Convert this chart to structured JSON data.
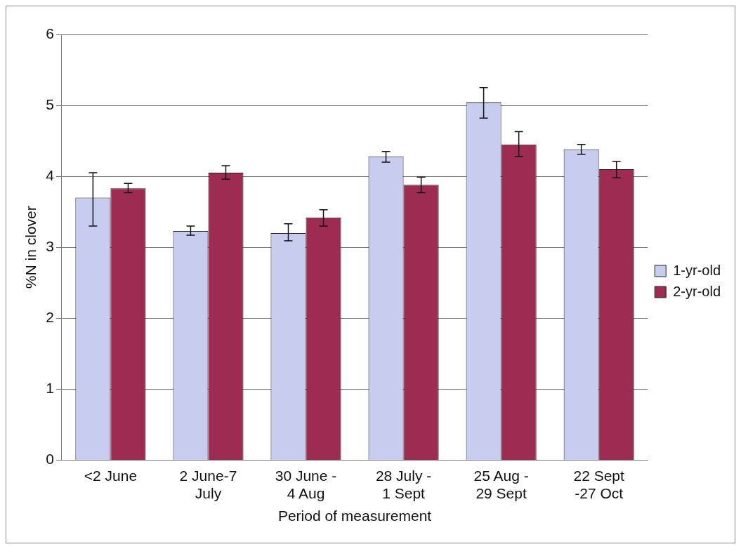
{
  "chart_data": {
    "type": "bar",
    "xlabel": "Period of measurement",
    "ylabel": "%N in clover",
    "categories": [
      "<2 June",
      "2 June-7 July",
      "30 June - 4 Aug",
      "28 July - 1 Sept",
      "25 Aug - 29 Sept",
      "22 Sept -27 Oct"
    ],
    "series": [
      {
        "name": "1-yr-old",
        "color": "#c8cdf0",
        "values": [
          3.7,
          3.23,
          3.2,
          4.28,
          5.04,
          4.38
        ],
        "errors": [
          [
            3.3,
            4.05
          ],
          [
            3.17,
            3.3
          ],
          [
            3.09,
            3.33
          ],
          [
            4.2,
            4.35
          ],
          [
            4.82,
            5.25
          ],
          [
            4.31,
            4.45
          ]
        ]
      },
      {
        "name": "2-yr-old",
        "color": "#9e2b52",
        "values": [
          3.83,
          4.05,
          3.42,
          3.88,
          4.45,
          4.1
        ],
        "errors": [
          [
            3.77,
            3.9
          ],
          [
            3.96,
            4.15
          ],
          [
            3.3,
            3.53
          ],
          [
            3.77,
            3.99
          ],
          [
            4.28,
            4.63
          ],
          [
            3.98,
            4.21
          ]
        ]
      }
    ],
    "ylim": [
      0,
      6
    ],
    "yticks": [
      0,
      1,
      2,
      3,
      4,
      5,
      6
    ],
    "grid": "y",
    "legend": "right"
  }
}
